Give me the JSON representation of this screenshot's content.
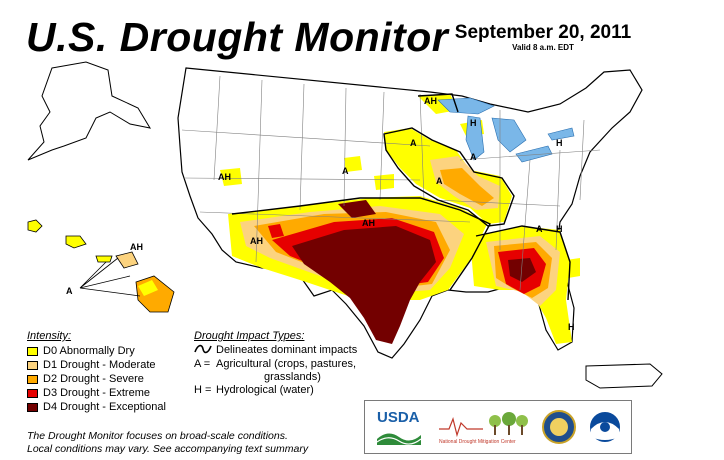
{
  "header": {
    "title": "U.S. Drought Monitor",
    "date": "September 20, 2011",
    "valid": "Valid 8 a.m. EDT"
  },
  "legend": {
    "heading": "Intensity:",
    "items": [
      {
        "label": "D0 Abnormally Dry",
        "color": "#ffff00"
      },
      {
        "label": "D1 Drought - Moderate",
        "color": "#fcd37f"
      },
      {
        "label": "D2 Drought - Severe",
        "color": "#ffaa00"
      },
      {
        "label": "D3 Drought - Extreme",
        "color": "#e60000"
      },
      {
        "label": "D4 Drought - Exceptional",
        "color": "#730000"
      }
    ]
  },
  "impacts": {
    "heading": "Drought Impact Types:",
    "items": [
      {
        "symbol": "~",
        "text": "Delineates dominant impacts"
      },
      {
        "symbol": "A =",
        "text": "Agricultural (crops, pastures,"
      },
      {
        "symbol": "",
        "text": "grasslands)"
      },
      {
        "symbol": "H =",
        "text": "Hydrological (water)"
      }
    ]
  },
  "note": {
    "line1": "The Drought Monitor focuses on broad-scale conditions.",
    "line2": "Local conditions may vary. See accompanying text summary"
  },
  "map_labels": {
    "ah_northwest": "AH",
    "ah_north_central": "AH",
    "ah_hawaii": "AH",
    "ah_southwest": "AH",
    "ah_southern_plains": "AH",
    "a_hawaii": "A",
    "a_northern_plains": "A",
    "a_upper_midwest": "A",
    "a_midwest": "A",
    "a_central": "A",
    "a_southeast": "A",
    "h_great_lakes": "H",
    "h_northeast": "H",
    "h_southeast": "H",
    "h_florida": "H"
  },
  "logos": {
    "usda": "USDA",
    "ndmc": "National Drought Mitigation Center",
    "usda_color": "#1a5fa8",
    "ndmc_color": "#c0392b"
  }
}
